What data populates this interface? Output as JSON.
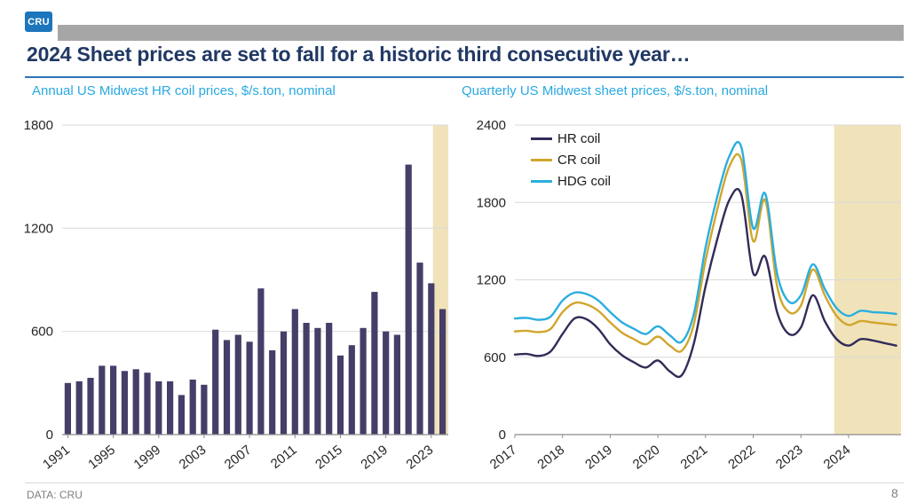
{
  "logo": "CRU",
  "title": "2024 Sheet prices are set to fall for a historic third consecutive year…",
  "footer": {
    "source": "DATA: CRU",
    "page": "8"
  },
  "colors": {
    "title_navy": "#203864",
    "subtitle_cyan": "#29a9e0",
    "top_bar_gray": "#a6a6a6",
    "rule_blue": "#2e75b6",
    "highlight_tan": "#f0e3ba"
  },
  "chart_data": [
    {
      "type": "bar",
      "title": "Annual US Midwest HR coil prices, $/s.ton, nominal",
      "xlabel": "",
      "ylabel": "$/s.ton",
      "categories": [
        1991,
        1992,
        1993,
        1994,
        1995,
        1996,
        1997,
        1998,
        1999,
        2000,
        2001,
        2002,
        2003,
        2004,
        2005,
        2006,
        2007,
        2008,
        2009,
        2010,
        2011,
        2012,
        2013,
        2014,
        2015,
        2016,
        2017,
        2018,
        2019,
        2020,
        2021,
        2022,
        2023,
        2024
      ],
      "values": [
        300,
        310,
        330,
        400,
        400,
        370,
        380,
        360,
        310,
        310,
        230,
        320,
        290,
        610,
        550,
        580,
        540,
        850,
        490,
        600,
        730,
        650,
        620,
        650,
        460,
        520,
        620,
        830,
        600,
        580,
        1570,
        1000,
        880,
        730
      ],
      "ylim": [
        0,
        1800
      ],
      "y_ticks": [
        0,
        600,
        1200,
        1800
      ],
      "x_tick_every": 4,
      "grid": true,
      "highlight_from": 2024,
      "highlight_color": "#f0e3ba",
      "bar_color": "#443e68"
    },
    {
      "type": "line",
      "title": "Quarterly US Midwest sheet prices, $/s.ton, nominal",
      "xlabel": "",
      "ylabel": "$/s.ton",
      "x_start": 2017,
      "x_step": 0.25,
      "xlim": [
        2017,
        2025.1
      ],
      "ylim": [
        0,
        2400
      ],
      "y_ticks": [
        0,
        600,
        1200,
        1800,
        2400
      ],
      "x_ticks": [
        2017,
        2018,
        2019,
        2020,
        2021,
        2022,
        2023,
        2024
      ],
      "grid": true,
      "legend_position": "top-left",
      "highlight_from": 2023.7,
      "highlight_color": "#f0e3ba",
      "series": [
        {
          "name": "HR coil",
          "color": "#322c58",
          "values": [
            620,
            625,
            610,
            645,
            780,
            900,
            895,
            820,
            700,
            615,
            560,
            520,
            575,
            490,
            460,
            700,
            1150,
            1520,
            1820,
            1860,
            1250,
            1380,
            950,
            780,
            830,
            1080,
            880,
            740,
            690,
            740,
            730,
            710,
            690
          ]
        },
        {
          "name": "CR coil",
          "color": "#d1a62c",
          "values": [
            800,
            805,
            795,
            820,
            950,
            1020,
            1010,
            960,
            870,
            790,
            740,
            700,
            760,
            690,
            650,
            850,
            1350,
            1750,
            2080,
            2130,
            1500,
            1820,
            1150,
            950,
            1000,
            1280,
            1080,
            920,
            850,
            880,
            870,
            860,
            850
          ]
        },
        {
          "name": "HDG coil",
          "color": "#2aaede",
          "values": [
            900,
            905,
            890,
            915,
            1040,
            1100,
            1090,
            1040,
            950,
            870,
            820,
            780,
            840,
            770,
            720,
            930,
            1450,
            1850,
            2160,
            2230,
            1600,
            1870,
            1250,
            1030,
            1080,
            1320,
            1130,
            980,
            920,
            960,
            950,
            945,
            935
          ]
        }
      ]
    }
  ]
}
